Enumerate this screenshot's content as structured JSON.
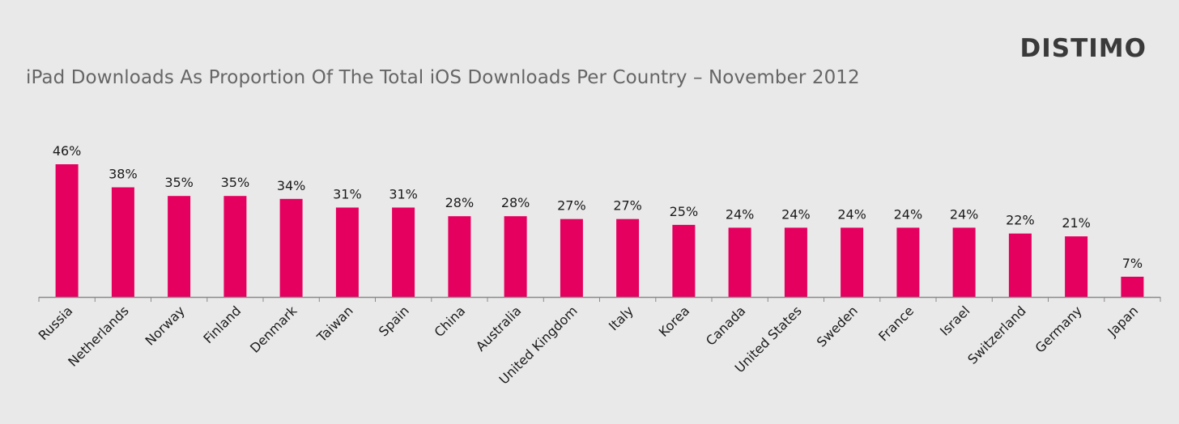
{
  "brand": "DISTIMO",
  "chart_data": {
    "type": "bar",
    "title": "iPad Downloads As Proportion Of The Total iOS Downloads Per Country – November 2012",
    "categories": [
      "Russia",
      "Netherlands",
      "Norway",
      "Finland",
      "Denmark",
      "Taiwan",
      "Spain",
      "China",
      "Australia",
      "United Kingdom",
      "Italy",
      "Korea",
      "Canada",
      "United States",
      "Sweden",
      "France",
      "Israel",
      "Switzerland",
      "Germany",
      "Japan"
    ],
    "values": [
      46,
      38,
      35,
      35,
      34,
      31,
      31,
      28,
      28,
      27,
      27,
      25,
      24,
      24,
      24,
      24,
      24,
      22,
      21,
      7
    ],
    "value_labels": [
      "46%",
      "38%",
      "35%",
      "35%",
      "34%",
      "31%",
      "31%",
      "28%",
      "28%",
      "27%",
      "27%",
      "25%",
      "24%",
      "24%",
      "24%",
      "24%",
      "24%",
      "22%",
      "21%",
      "7%"
    ],
    "bar_color": "#e5005f",
    "xlabel": "",
    "ylabel": "",
    "ylim": [
      0,
      46
    ],
    "grid": false,
    "legend": "none"
  }
}
